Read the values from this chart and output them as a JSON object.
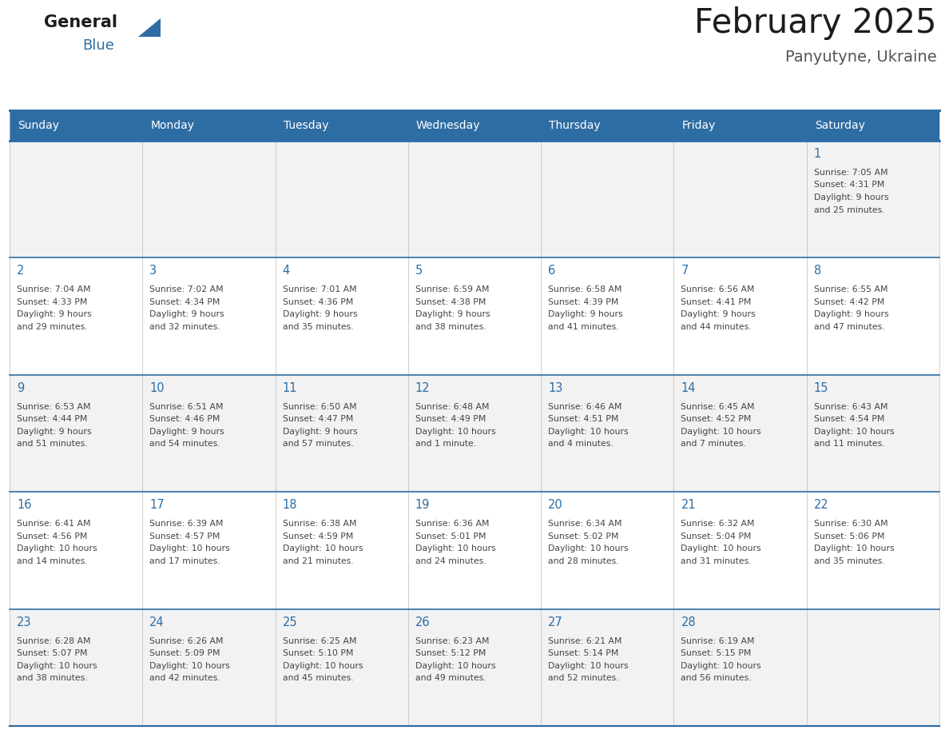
{
  "title": "February 2025",
  "subtitle": "Panyutyne, Ukraine",
  "header_bg": "#2E6DA4",
  "header_text_color": "#FFFFFF",
  "cell_bg_even": "#F2F2F2",
  "cell_bg_odd": "#FFFFFF",
  "day_number_color": "#2E6DA4",
  "cell_text_color": "#444444",
  "border_color": "#2E6DA4",
  "days_of_week": [
    "Sunday",
    "Monday",
    "Tuesday",
    "Wednesday",
    "Thursday",
    "Friday",
    "Saturday"
  ],
  "calendar_data": [
    [
      null,
      null,
      null,
      null,
      null,
      null,
      {
        "day": "1",
        "sunrise": "7:05 AM",
        "sunset": "4:31 PM",
        "daylight": "9 hours\nand 25 minutes."
      }
    ],
    [
      {
        "day": "2",
        "sunrise": "7:04 AM",
        "sunset": "4:33 PM",
        "daylight": "9 hours\nand 29 minutes."
      },
      {
        "day": "3",
        "sunrise": "7:02 AM",
        "sunset": "4:34 PM",
        "daylight": "9 hours\nand 32 minutes."
      },
      {
        "day": "4",
        "sunrise": "7:01 AM",
        "sunset": "4:36 PM",
        "daylight": "9 hours\nand 35 minutes."
      },
      {
        "day": "5",
        "sunrise": "6:59 AM",
        "sunset": "4:38 PM",
        "daylight": "9 hours\nand 38 minutes."
      },
      {
        "day": "6",
        "sunrise": "6:58 AM",
        "sunset": "4:39 PM",
        "daylight": "9 hours\nand 41 minutes."
      },
      {
        "day": "7",
        "sunrise": "6:56 AM",
        "sunset": "4:41 PM",
        "daylight": "9 hours\nand 44 minutes."
      },
      {
        "day": "8",
        "sunrise": "6:55 AM",
        "sunset": "4:42 PM",
        "daylight": "9 hours\nand 47 minutes."
      }
    ],
    [
      {
        "day": "9",
        "sunrise": "6:53 AM",
        "sunset": "4:44 PM",
        "daylight": "9 hours\nand 51 minutes."
      },
      {
        "day": "10",
        "sunrise": "6:51 AM",
        "sunset": "4:46 PM",
        "daylight": "9 hours\nand 54 minutes."
      },
      {
        "day": "11",
        "sunrise": "6:50 AM",
        "sunset": "4:47 PM",
        "daylight": "9 hours\nand 57 minutes."
      },
      {
        "day": "12",
        "sunrise": "6:48 AM",
        "sunset": "4:49 PM",
        "daylight": "10 hours\nand 1 minute."
      },
      {
        "day": "13",
        "sunrise": "6:46 AM",
        "sunset": "4:51 PM",
        "daylight": "10 hours\nand 4 minutes."
      },
      {
        "day": "14",
        "sunrise": "6:45 AM",
        "sunset": "4:52 PM",
        "daylight": "10 hours\nand 7 minutes."
      },
      {
        "day": "15",
        "sunrise": "6:43 AM",
        "sunset": "4:54 PM",
        "daylight": "10 hours\nand 11 minutes."
      }
    ],
    [
      {
        "day": "16",
        "sunrise": "6:41 AM",
        "sunset": "4:56 PM",
        "daylight": "10 hours\nand 14 minutes."
      },
      {
        "day": "17",
        "sunrise": "6:39 AM",
        "sunset": "4:57 PM",
        "daylight": "10 hours\nand 17 minutes."
      },
      {
        "day": "18",
        "sunrise": "6:38 AM",
        "sunset": "4:59 PM",
        "daylight": "10 hours\nand 21 minutes."
      },
      {
        "day": "19",
        "sunrise": "6:36 AM",
        "sunset": "5:01 PM",
        "daylight": "10 hours\nand 24 minutes."
      },
      {
        "day": "20",
        "sunrise": "6:34 AM",
        "sunset": "5:02 PM",
        "daylight": "10 hours\nand 28 minutes."
      },
      {
        "day": "21",
        "sunrise": "6:32 AM",
        "sunset": "5:04 PM",
        "daylight": "10 hours\nand 31 minutes."
      },
      {
        "day": "22",
        "sunrise": "6:30 AM",
        "sunset": "5:06 PM",
        "daylight": "10 hours\nand 35 minutes."
      }
    ],
    [
      {
        "day": "23",
        "sunrise": "6:28 AM",
        "sunset": "5:07 PM",
        "daylight": "10 hours\nand 38 minutes."
      },
      {
        "day": "24",
        "sunrise": "6:26 AM",
        "sunset": "5:09 PM",
        "daylight": "10 hours\nand 42 minutes."
      },
      {
        "day": "25",
        "sunrise": "6:25 AM",
        "sunset": "5:10 PM",
        "daylight": "10 hours\nand 45 minutes."
      },
      {
        "day": "26",
        "sunrise": "6:23 AM",
        "sunset": "5:12 PM",
        "daylight": "10 hours\nand 49 minutes."
      },
      {
        "day": "27",
        "sunrise": "6:21 AM",
        "sunset": "5:14 PM",
        "daylight": "10 hours\nand 52 minutes."
      },
      {
        "day": "28",
        "sunrise": "6:19 AM",
        "sunset": "5:15 PM",
        "daylight": "10 hours\nand 56 minutes."
      },
      null
    ]
  ]
}
